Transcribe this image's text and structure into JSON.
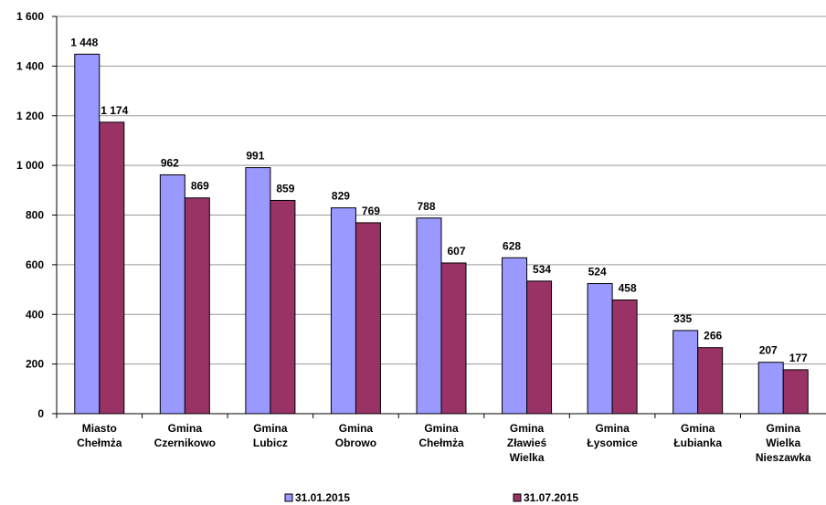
{
  "chart_data": {
    "type": "bar",
    "categories": [
      "Miasto Chełmża",
      "Gmina Czernikowo",
      "Gmina Lubicz",
      "Gmina Obrowo",
      "Gmina Chełmża",
      "Gmina Zławieś Wielka",
      "Gmina Łysomice",
      "Gmina Łubianka",
      "Gmina Wielka Nieszawka"
    ],
    "series": [
      {
        "name": "31.01.2015",
        "color": "#9999ff",
        "values": [
          1448,
          962,
          991,
          829,
          788,
          628,
          524,
          335,
          207
        ],
        "value_labels": [
          "1 448",
          "962",
          "991",
          "829",
          "788",
          "628",
          "524",
          "335",
          "207"
        ]
      },
      {
        "name": "31.07.2015",
        "color": "#993366",
        "values": [
          1174,
          869,
          859,
          769,
          607,
          534,
          458,
          266,
          177
        ],
        "value_labels": [
          "1 174",
          "869",
          "859",
          "769",
          "607",
          "534",
          "458",
          "266",
          "177"
        ]
      }
    ],
    "ylim": [
      0,
      1600
    ],
    "yticks": [
      0,
      200,
      400,
      600,
      800,
      {
        "value": 1000,
        "label": "1 000"
      },
      {
        "value": 1200,
        "label": "1 200"
      },
      {
        "value": 1400,
        "label": "1 400"
      },
      {
        "value": 1600,
        "label": "1 600"
      }
    ],
    "grid": true,
    "legend": "bottom"
  }
}
